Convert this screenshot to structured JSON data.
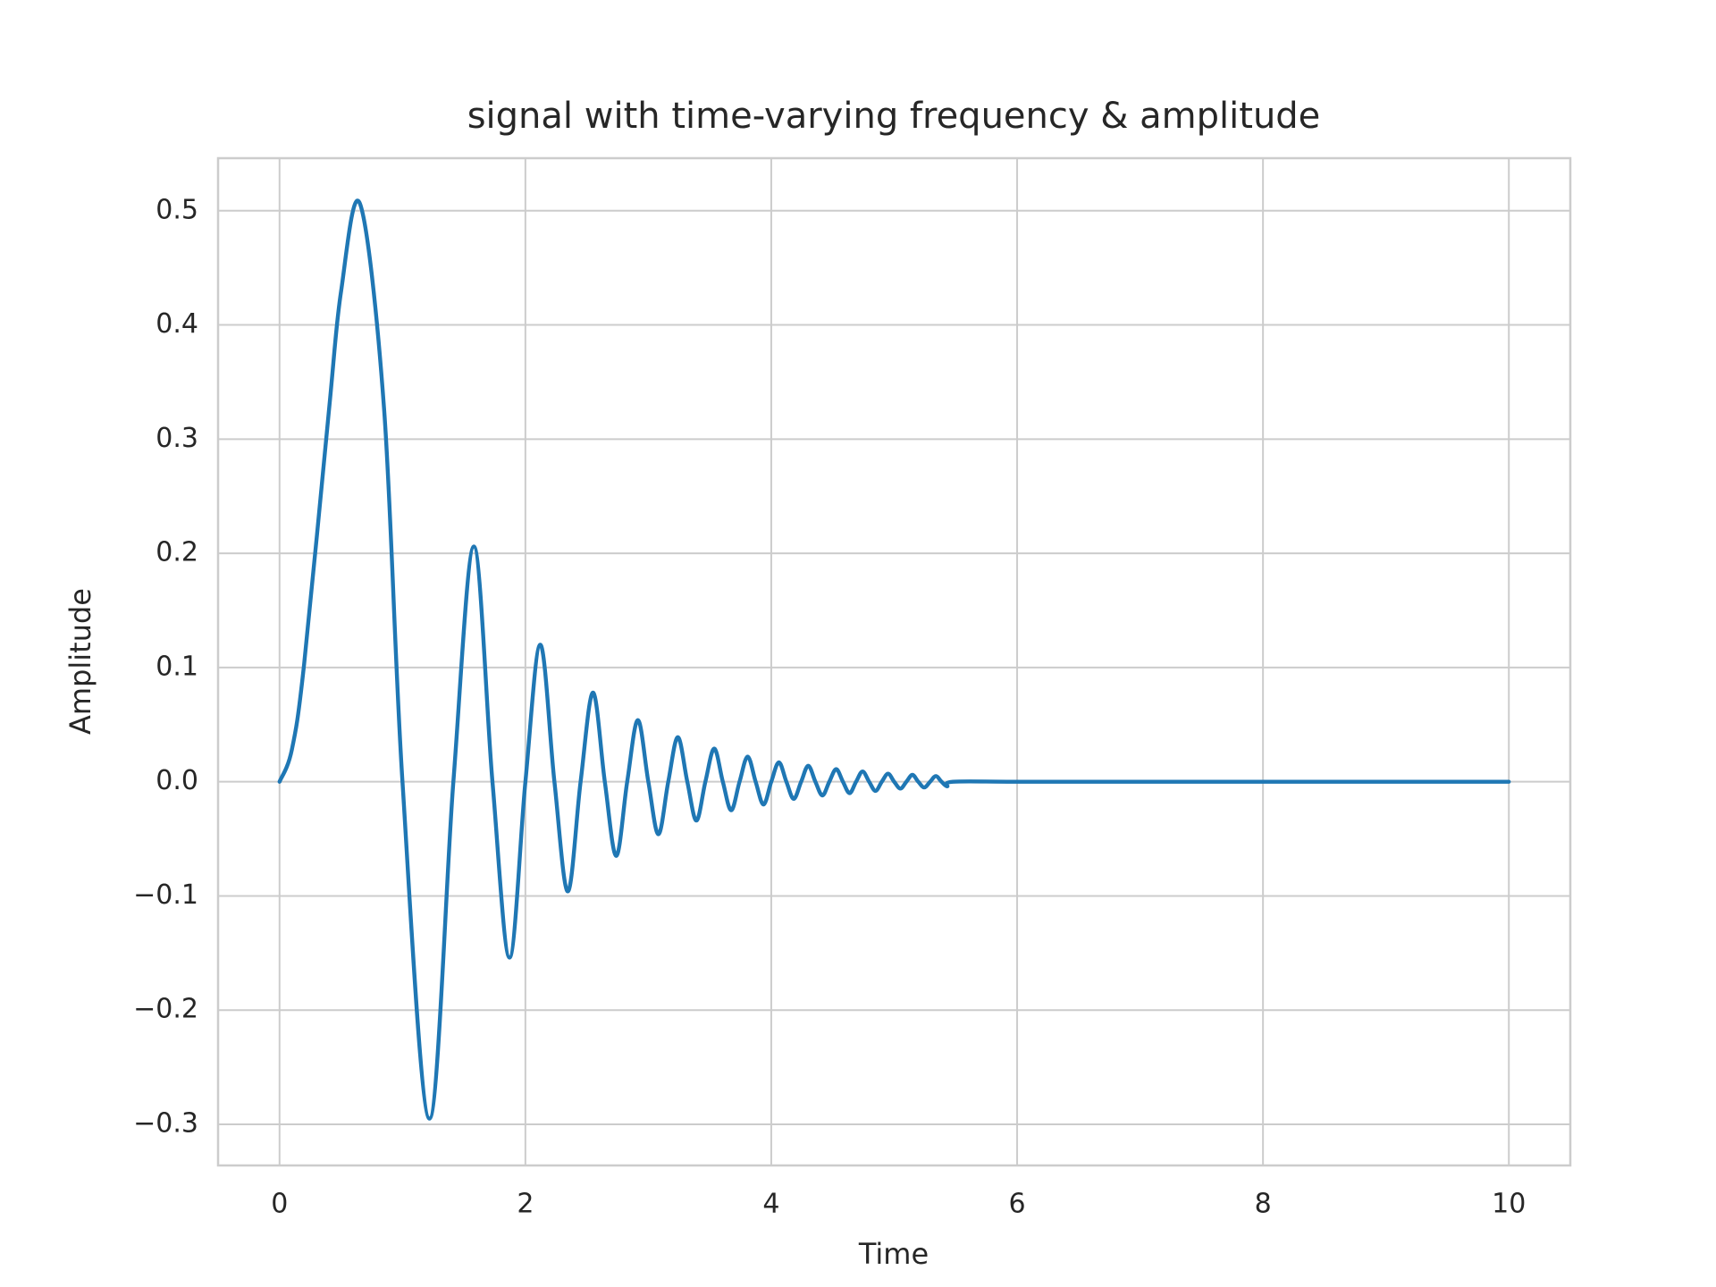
{
  "chart_data": {
    "type": "line",
    "title": "signal with time-varying frequency & amplitude",
    "xlabel": "Time",
    "ylabel": "Amplitude",
    "x": [
      0,
      0.1,
      0.2,
      0.4,
      0.5,
      0.655,
      0.85,
      1,
      1.22,
      1.414,
      1.581,
      1.732,
      1.871,
      2,
      2.121,
      2.236,
      2.345,
      2.449,
      2.55,
      2.646,
      2.739,
      2.828,
      2.915,
      3,
      3.082,
      3.162,
      3.24,
      3.317,
      3.391,
      3.464,
      3.536,
      3.606,
      3.674,
      3.742,
      3.808,
      3.873,
      3.937,
      4,
      4.062,
      4.123,
      4.183,
      4.243,
      4.301,
      4.359,
      4.416,
      4.472,
      4.528,
      4.583,
      4.637,
      4.69,
      4.743,
      4.796,
      4.848,
      4.899,
      4.95,
      5,
      5.05,
      5.099,
      5.148,
      5.196,
      5.244,
      5.292,
      5.339,
      5.385,
      5.431,
      5.477,
      6,
      7,
      8,
      9,
      10
    ],
    "series": [
      {
        "color": "#1f77b4",
        "values": [
          0,
          0.028,
          0.103,
          0.323,
          0.429,
          0.506,
          0.327,
          0,
          -0.295,
          0,
          0.206,
          0,
          -0.154,
          0,
          0.12,
          0,
          -0.096,
          0,
          0.078,
          0,
          -0.065,
          0,
          0.054,
          0,
          -0.046,
          0,
          0.039,
          0,
          -0.034,
          0,
          0.029,
          0,
          -0.025,
          0,
          0.022,
          0,
          -0.02,
          0,
          0.017,
          0,
          -0.015,
          0,
          0.014,
          0,
          -0.012,
          0,
          0.011,
          0,
          -0.01,
          0,
          0.009,
          0,
          -0.008,
          0,
          0.007,
          0,
          -0.006,
          0,
          0.006,
          0,
          -0.005,
          0,
          0.005,
          0,
          -0.004,
          0,
          0,
          0,
          0,
          0,
          0
        ]
      }
    ],
    "xlim": [
      -0.5,
      10.5
    ],
    "ylim": [
      -0.336,
      0.546
    ],
    "xticks": [
      0,
      2,
      4,
      6,
      8,
      10
    ],
    "yticks": [
      {
        "value": -0.3,
        "label": "−0.3"
      },
      {
        "value": -0.2,
        "label": "−0.2"
      },
      {
        "value": -0.1,
        "label": "−0.1"
      },
      {
        "value": 0,
        "label": "0.0"
      },
      {
        "value": 0.1,
        "label": "0.1"
      },
      {
        "value": 0.2,
        "label": "0.2"
      },
      {
        "value": 0.3,
        "label": "0.3"
      },
      {
        "value": 0.4,
        "label": "0.4"
      },
      {
        "value": 0.5,
        "label": "0.5"
      }
    ],
    "grid": true
  }
}
